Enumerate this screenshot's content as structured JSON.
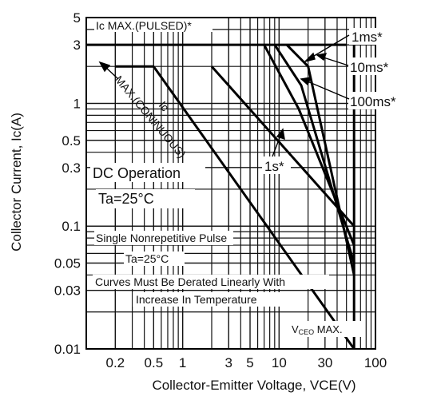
{
  "chart_data": {
    "type": "line",
    "xlabel": "Collector-Emitter Voltage, VCE(V)",
    "ylabel": "Collector Current,  Ic(A)",
    "xscale": "log",
    "yscale": "log",
    "xlim": [
      0.1,
      100
    ],
    "ylim": [
      0.01,
      5
    ],
    "grid": true,
    "x_ticks": [
      {
        "value": 0.2,
        "label": "0.2"
      },
      {
        "value": 0.5,
        "label": "0.5"
      },
      {
        "value": 1,
        "label": "1"
      },
      {
        "value": 3,
        "label": "3"
      },
      {
        "value": 5,
        "label": "5"
      },
      {
        "value": 10,
        "label": "10"
      },
      {
        "value": 30,
        "label": "30"
      },
      {
        "value": 100,
        "label": "100"
      }
    ],
    "y_ticks": [
      {
        "value": 5,
        "label": "5"
      },
      {
        "value": 3,
        "label": "3"
      },
      {
        "value": 1,
        "label": "1"
      },
      {
        "value": 0.5,
        "label": "0.5"
      },
      {
        "value": 0.3,
        "label": "0.3"
      },
      {
        "value": 0.1,
        "label": "0.1"
      },
      {
        "value": 0.05,
        "label": "0.05"
      },
      {
        "value": 0.03,
        "label": "0.03"
      },
      {
        "value": 0.01,
        "label": "0.01"
      }
    ],
    "series": [
      {
        "name": "Ic MAX.(PULSED)*",
        "points": [
          [
            0.1,
            3
          ],
          [
            50,
            3
          ]
        ]
      },
      {
        "name": "Ic MAX.(CONTINUOUS)",
        "points": [
          [
            0.2,
            2
          ],
          [
            0.5,
            2
          ]
        ]
      },
      {
        "name": "1ms*",
        "points": [
          [
            12,
            3
          ],
          [
            20,
            2
          ],
          [
            60,
            0.04
          ]
        ]
      },
      {
        "name": "10ms*",
        "points": [
          [
            9,
            3
          ],
          [
            17,
            1.4
          ],
          [
            60,
            0.05
          ]
        ]
      },
      {
        "name": "100ms*",
        "points": [
          [
            7,
            3
          ],
          [
            16,
            0.9
          ],
          [
            60,
            0.07
          ]
        ]
      },
      {
        "name": "1s*",
        "points": [
          [
            2,
            2
          ],
          [
            60,
            0.1
          ]
        ]
      },
      {
        "name": "DC Operation",
        "points": [
          [
            0.5,
            2
          ],
          [
            60,
            0.01
          ]
        ]
      },
      {
        "name": "VCEO MAX.",
        "points": [
          [
            60,
            0.01
          ],
          [
            60,
            3
          ]
        ]
      }
    ],
    "annotations": {
      "pulsed": "Ic MAX.(PULSED)*",
      "continuous_ic": "Ic",
      "continuous": "MAX.(CONINUOUS)",
      "ms1": "1ms*",
      "ms10": "10ms*",
      "ms100": "100ms*",
      "s1": "1s*",
      "dc": "DC Operation",
      "ta1": "Ta=25°C",
      "single": "Single Nonrepetitive Pulse",
      "ta2": "Ta=25°C",
      "derate1": "Curves Must Be Derated Linearly With",
      "derate2": "Increase In Temperature",
      "vceo_v": "V",
      "vceo_sub": "CEO",
      "vceo_max": " MAX."
    }
  }
}
